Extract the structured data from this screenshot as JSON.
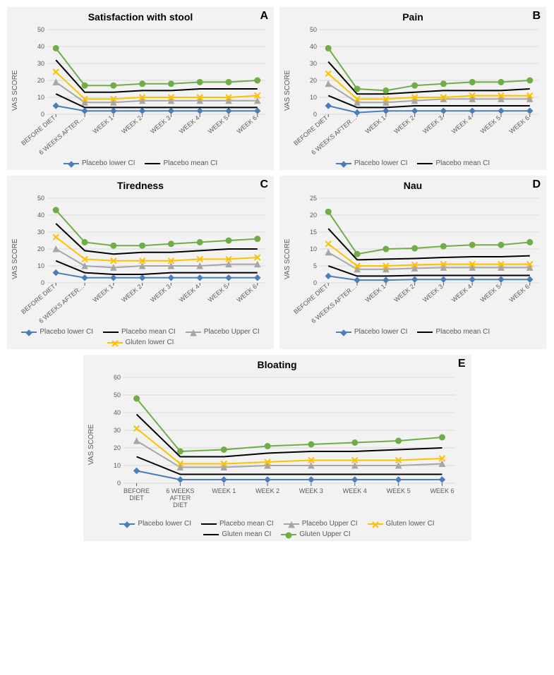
{
  "colors": {
    "placebo_lower": "#4a7ebb",
    "placebo_mean": "#000000",
    "placebo_upper": "#a6a6a6",
    "gluten_lower": "#ffc000",
    "gluten_mean": "#000000",
    "gluten_upper": "#70ad47",
    "grid": "#d9d9d9",
    "panel_bg": "#f2f2f2",
    "axis_text": "#595959"
  },
  "series_style": {
    "line_width": 2,
    "marker_size": 4
  },
  "x_categories_short": [
    "BEFORE DIET",
    "6 WEEKS AFTER…",
    "WEEK 1",
    "WEEK 2",
    "WEEK 3",
    "WEEK 4",
    "WEEK 5",
    "WEEK 6"
  ],
  "x_categories_long": [
    "BEFORE\nDIET",
    "6 WEEKS\nAFTER\nDIET",
    "WEEK 1",
    "WEEK 2",
    "WEEK 3",
    "WEEK 4",
    "WEEK 5",
    "WEEK 6"
  ],
  "ylabel": "VAS SCORE",
  "legend_labels": {
    "placebo_lower": "Placebo lower CI",
    "placebo_mean": "Placebo mean CI",
    "placebo_upper": "Placebo Upper CI",
    "gluten_lower": "Gluten lower CI",
    "gluten_mean": "Gluten mean CI",
    "gluten_upper": "Gluten Upper CI"
  },
  "panels": {
    "A": {
      "letter": "A",
      "title": "Satisfaction with stool",
      "ylim": [
        0,
        50
      ],
      "ytick_step": 10,
      "legend": [
        "placebo_lower",
        "placebo_mean"
      ],
      "series": {
        "placebo_lower": [
          5,
          2,
          2,
          2,
          2,
          2,
          2,
          2
        ],
        "placebo_mean": [
          12,
          4,
          4,
          4,
          4,
          4,
          4,
          4
        ],
        "placebo_upper": [
          19,
          7,
          7,
          8,
          8,
          8,
          8,
          8
        ],
        "gluten_lower": [
          25,
          9,
          9,
          10,
          10,
          10,
          10,
          11
        ],
        "gluten_mean": [
          32,
          13,
          13,
          14,
          14,
          15,
          15,
          15
        ],
        "gluten_upper": [
          39,
          17,
          17,
          18,
          18,
          19,
          19,
          20
        ]
      }
    },
    "B": {
      "letter": "B",
      "title": "Pain",
      "ylim": [
        0,
        50
      ],
      "ytick_step": 10,
      "legend": [
        "placebo_lower",
        "placebo_mean"
      ],
      "series": {
        "placebo_lower": [
          5,
          1,
          2,
          2,
          2,
          2,
          2,
          2
        ],
        "placebo_mean": [
          11,
          4,
          4,
          5,
          5,
          5,
          5,
          5
        ],
        "placebo_upper": [
          18,
          7,
          7,
          8,
          9,
          9,
          9,
          9
        ],
        "gluten_lower": [
          24,
          9,
          9,
          10,
          10,
          11,
          11,
          11
        ],
        "gluten_mean": [
          31,
          12,
          12,
          13,
          14,
          14,
          14,
          15
        ],
        "gluten_upper": [
          39,
          15,
          14,
          17,
          18,
          19,
          19,
          20
        ]
      }
    },
    "C": {
      "letter": "C",
      "title": "Tiredness",
      "ylim": [
        0,
        50
      ],
      "ytick_step": 10,
      "legend": [
        "placebo_lower",
        "placebo_mean",
        "placebo_upper",
        "gluten_lower"
      ],
      "series": {
        "placebo_lower": [
          6,
          3,
          3,
          3,
          3,
          3,
          3,
          3
        ],
        "placebo_mean": [
          13,
          6,
          5,
          5,
          6,
          6,
          6,
          6
        ],
        "placebo_upper": [
          20,
          10,
          9,
          10,
          10,
          10,
          11,
          11
        ],
        "gluten_lower": [
          27,
          14,
          13,
          13,
          13,
          14,
          14,
          15
        ],
        "gluten_mean": [
          35,
          19,
          17,
          18,
          18,
          19,
          20,
          20
        ],
        "gluten_upper": [
          43,
          24,
          22,
          22,
          23,
          24,
          25,
          26
        ]
      }
    },
    "D": {
      "letter": "D",
      "title": "Nau",
      "ylim": [
        0,
        25
      ],
      "ytick_step": 5,
      "legend": [
        "placebo_lower",
        "placebo_mean"
      ],
      "series": {
        "placebo_lower": [
          2.0,
          0.8,
          0.8,
          1.0,
          1.0,
          1.0,
          1.0,
          1.0
        ],
        "placebo_mean": [
          5.0,
          2.0,
          2.0,
          2.2,
          2.2,
          2.2,
          2.2,
          2.2
        ],
        "placebo_upper": [
          9.0,
          4.0,
          4.0,
          4.3,
          4.5,
          4.5,
          4.5,
          4.5
        ],
        "gluten_lower": [
          11.5,
          5.0,
          5.0,
          5.3,
          5.5,
          5.5,
          5.5,
          5.5
        ],
        "gluten_mean": [
          16.0,
          6.8,
          7.0,
          7.2,
          7.5,
          7.7,
          7.7,
          8.0
        ],
        "gluten_upper": [
          21.0,
          8.5,
          10.0,
          10.2,
          10.8,
          11.2,
          11.2,
          12.0
        ]
      }
    },
    "E": {
      "letter": "E",
      "title": "Bloating",
      "ylim": [
        0,
        60
      ],
      "ytick_step": 10,
      "legend": [
        "placebo_lower",
        "placebo_mean",
        "placebo_upper",
        "gluten_lower",
        "gluten_mean",
        "gluten_upper"
      ],
      "series": {
        "placebo_lower": [
          7,
          2,
          2,
          2,
          2,
          2,
          2,
          2
        ],
        "placebo_mean": [
          15,
          5,
          5,
          5,
          5,
          5,
          5,
          5
        ],
        "placebo_upper": [
          24,
          9,
          9,
          10,
          10,
          10,
          10,
          11
        ],
        "gluten_lower": [
          31,
          11,
          11,
          12,
          13,
          13,
          13,
          14
        ],
        "gluten_mean": [
          39,
          15,
          15,
          17,
          18,
          18,
          19,
          20
        ],
        "gluten_upper": [
          48,
          18,
          19,
          21,
          22,
          23,
          24,
          26
        ]
      }
    }
  }
}
